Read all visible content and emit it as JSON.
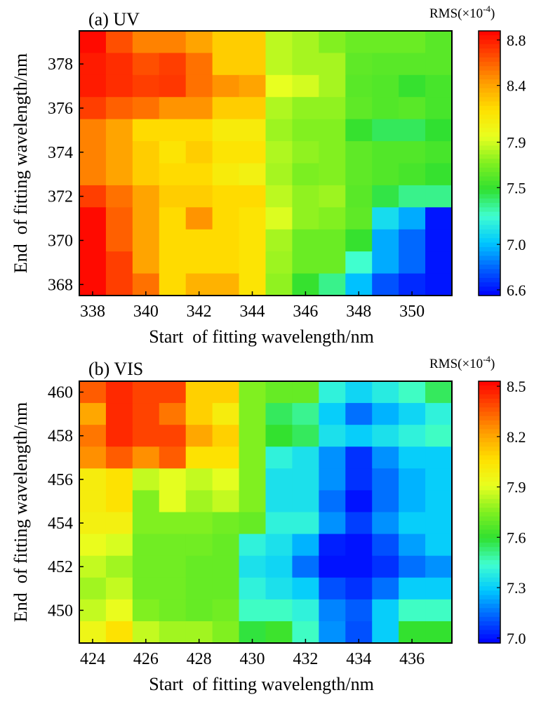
{
  "chart_data": [
    {
      "type": "heatmap",
      "panel_label": "(a) UV",
      "xlabel": "Start  of fitting wavelength/nm",
      "ylabel": "End  of fitting wavelength/nm",
      "colorbar_title_prefix": "RMS(×10",
      "colorbar_title_exp": "-4",
      "colorbar_title_suffix": ")",
      "x": [
        338,
        339,
        340,
        341,
        342,
        343,
        344,
        345,
        346,
        347,
        348,
        349,
        350,
        351
      ],
      "y": [
        379,
        378,
        377,
        376,
        375,
        374,
        373,
        372,
        371,
        370,
        369,
        368
      ],
      "xticks": [
        338,
        340,
        342,
        344,
        346,
        348,
        350
      ],
      "yticks": [
        368,
        370,
        372,
        374,
        376,
        378
      ],
      "clim": [
        6.55,
        8.88
      ],
      "colorbar_ticks": [
        8.8,
        8.4,
        7.9,
        7.5,
        7.0,
        6.6
      ],
      "colorbar_tick_labels": [
        "8.8",
        "8.4",
        "7.9",
        "7.5",
        "7.0",
        "6.6"
      ],
      "colormap": [
        "#0000ff",
        "#0060ff",
        "#00c8ff",
        "#40ffd0",
        "#30e030",
        "#80f020",
        "#e8ff20",
        "#ffe000",
        "#ffa000",
        "#ff5000",
        "#ff0000"
      ],
      "values": [
        [
          8.85,
          8.65,
          8.5,
          8.5,
          8.4,
          8.25,
          8.25,
          7.85,
          7.8,
          7.72,
          7.65,
          7.65,
          7.65,
          7.6
        ],
        [
          8.8,
          8.75,
          8.65,
          8.7,
          8.55,
          8.25,
          8.25,
          7.85,
          7.8,
          7.8,
          7.62,
          7.6,
          7.6,
          7.6
        ],
        [
          8.8,
          8.75,
          8.7,
          8.72,
          8.55,
          8.45,
          8.4,
          7.95,
          7.9,
          7.8,
          7.6,
          7.58,
          7.5,
          7.55
        ],
        [
          8.7,
          8.6,
          8.55,
          8.45,
          8.45,
          8.25,
          8.25,
          7.82,
          7.75,
          7.75,
          7.62,
          7.58,
          7.6,
          7.55
        ],
        [
          8.5,
          8.4,
          8.2,
          8.2,
          8.2,
          8.1,
          8.1,
          7.78,
          7.72,
          7.72,
          7.5,
          7.42,
          7.42,
          7.48
        ],
        [
          8.5,
          8.4,
          8.25,
          8.15,
          8.25,
          8.15,
          8.15,
          7.82,
          7.75,
          7.72,
          7.62,
          7.58,
          7.58,
          7.55
        ],
        [
          8.5,
          8.4,
          8.25,
          8.2,
          8.2,
          8.1,
          8.05,
          7.8,
          7.7,
          7.72,
          7.62,
          7.58,
          7.55,
          7.5
        ],
        [
          8.7,
          8.55,
          8.4,
          8.25,
          8.25,
          8.2,
          8.2,
          7.85,
          7.75,
          7.78,
          7.6,
          7.45,
          7.35,
          7.35
        ],
        [
          8.85,
          8.6,
          8.4,
          8.2,
          8.45,
          8.2,
          8.15,
          7.92,
          7.75,
          7.72,
          7.62,
          7.1,
          6.95,
          6.6
        ],
        [
          8.85,
          8.6,
          8.4,
          8.2,
          8.2,
          8.2,
          8.15,
          7.8,
          7.65,
          7.65,
          7.5,
          6.95,
          6.8,
          6.6
        ],
        [
          8.85,
          8.7,
          8.4,
          8.2,
          8.2,
          8.2,
          8.15,
          7.78,
          7.65,
          7.65,
          7.25,
          6.95,
          6.8,
          6.6
        ],
        [
          8.85,
          8.7,
          8.55,
          8.2,
          8.35,
          8.35,
          8.15,
          7.75,
          7.5,
          7.35,
          7.0,
          6.75,
          6.65,
          6.6
        ]
      ]
    },
    {
      "type": "heatmap",
      "panel_label": "(b) VIS",
      "xlabel": "Start  of fitting wavelength/nm",
      "ylabel": "End  of fitting wavelength/nm",
      "colorbar_title_prefix": "RMS(×10",
      "colorbar_title_exp": "-4",
      "colorbar_title_suffix": ")",
      "x": [
        424,
        425,
        426,
        427,
        428,
        429,
        430,
        431,
        432,
        433,
        434,
        435,
        436,
        437
      ],
      "y": [
        460,
        459,
        458,
        457,
        456,
        455,
        454,
        453,
        452,
        451,
        450,
        449
      ],
      "xticks": [
        424,
        426,
        428,
        430,
        432,
        434,
        436
      ],
      "yticks": [
        450,
        452,
        454,
        456,
        458,
        460
      ],
      "clim": [
        6.97,
        8.53
      ],
      "colorbar_ticks": [
        8.5,
        8.2,
        7.9,
        7.6,
        7.3,
        7.0
      ],
      "colorbar_tick_labels": [
        "8.5",
        "8.2",
        "7.9",
        "7.6",
        "7.3",
        "7.0"
      ],
      "colormap": [
        "#0000ff",
        "#0060ff",
        "#00c8ff",
        "#40ffd0",
        "#30e030",
        "#80f020",
        "#e8ff20",
        "#ffe000",
        "#ffa000",
        "#ff5000",
        "#ff0000"
      ],
      "values": [
        [
          8.35,
          8.45,
          8.4,
          8.4,
          8.1,
          8.1,
          7.75,
          7.7,
          7.7,
          7.4,
          7.32,
          7.38,
          7.45,
          7.55
        ],
        [
          8.2,
          8.45,
          8.4,
          8.3,
          8.1,
          8.0,
          7.75,
          7.55,
          7.5,
          7.3,
          7.15,
          7.25,
          7.32,
          7.4
        ],
        [
          8.3,
          8.45,
          8.4,
          8.4,
          8.2,
          8.1,
          7.75,
          7.6,
          7.55,
          7.35,
          7.3,
          7.35,
          7.4,
          7.45
        ],
        [
          8.25,
          8.35,
          8.25,
          8.35,
          8.05,
          8.05,
          7.75,
          7.4,
          7.35,
          7.2,
          7.05,
          7.2,
          7.3,
          7.3
        ],
        [
          8.0,
          8.05,
          7.85,
          7.9,
          7.85,
          7.9,
          7.75,
          7.35,
          7.35,
          7.2,
          7.05,
          7.15,
          7.25,
          7.3
        ],
        [
          8.0,
          8.05,
          7.75,
          7.9,
          7.8,
          7.85,
          7.75,
          7.35,
          7.35,
          7.15,
          7.0,
          7.15,
          7.25,
          7.3
        ],
        [
          7.98,
          7.98,
          7.75,
          7.75,
          7.75,
          7.72,
          7.7,
          7.4,
          7.4,
          7.2,
          7.07,
          7.2,
          7.3,
          7.3
        ],
        [
          7.92,
          7.88,
          7.72,
          7.72,
          7.72,
          7.7,
          7.4,
          7.35,
          7.25,
          7.02,
          7.0,
          7.1,
          7.22,
          7.3
        ],
        [
          7.85,
          7.8,
          7.72,
          7.72,
          7.7,
          7.7,
          7.35,
          7.32,
          7.15,
          7.0,
          7.0,
          7.05,
          7.15,
          7.2
        ],
        [
          7.8,
          7.85,
          7.72,
          7.72,
          7.7,
          7.7,
          7.4,
          7.35,
          7.3,
          7.1,
          7.05,
          7.15,
          7.3,
          7.3
        ],
        [
          7.85,
          7.92,
          7.75,
          7.72,
          7.7,
          7.72,
          7.45,
          7.45,
          7.4,
          7.18,
          7.12,
          7.3,
          7.45,
          7.45
        ],
        [
          7.95,
          8.05,
          7.85,
          7.8,
          7.8,
          7.75,
          7.58,
          7.62,
          7.45,
          7.2,
          7.1,
          7.3,
          7.6,
          7.6
        ]
      ]
    }
  ]
}
